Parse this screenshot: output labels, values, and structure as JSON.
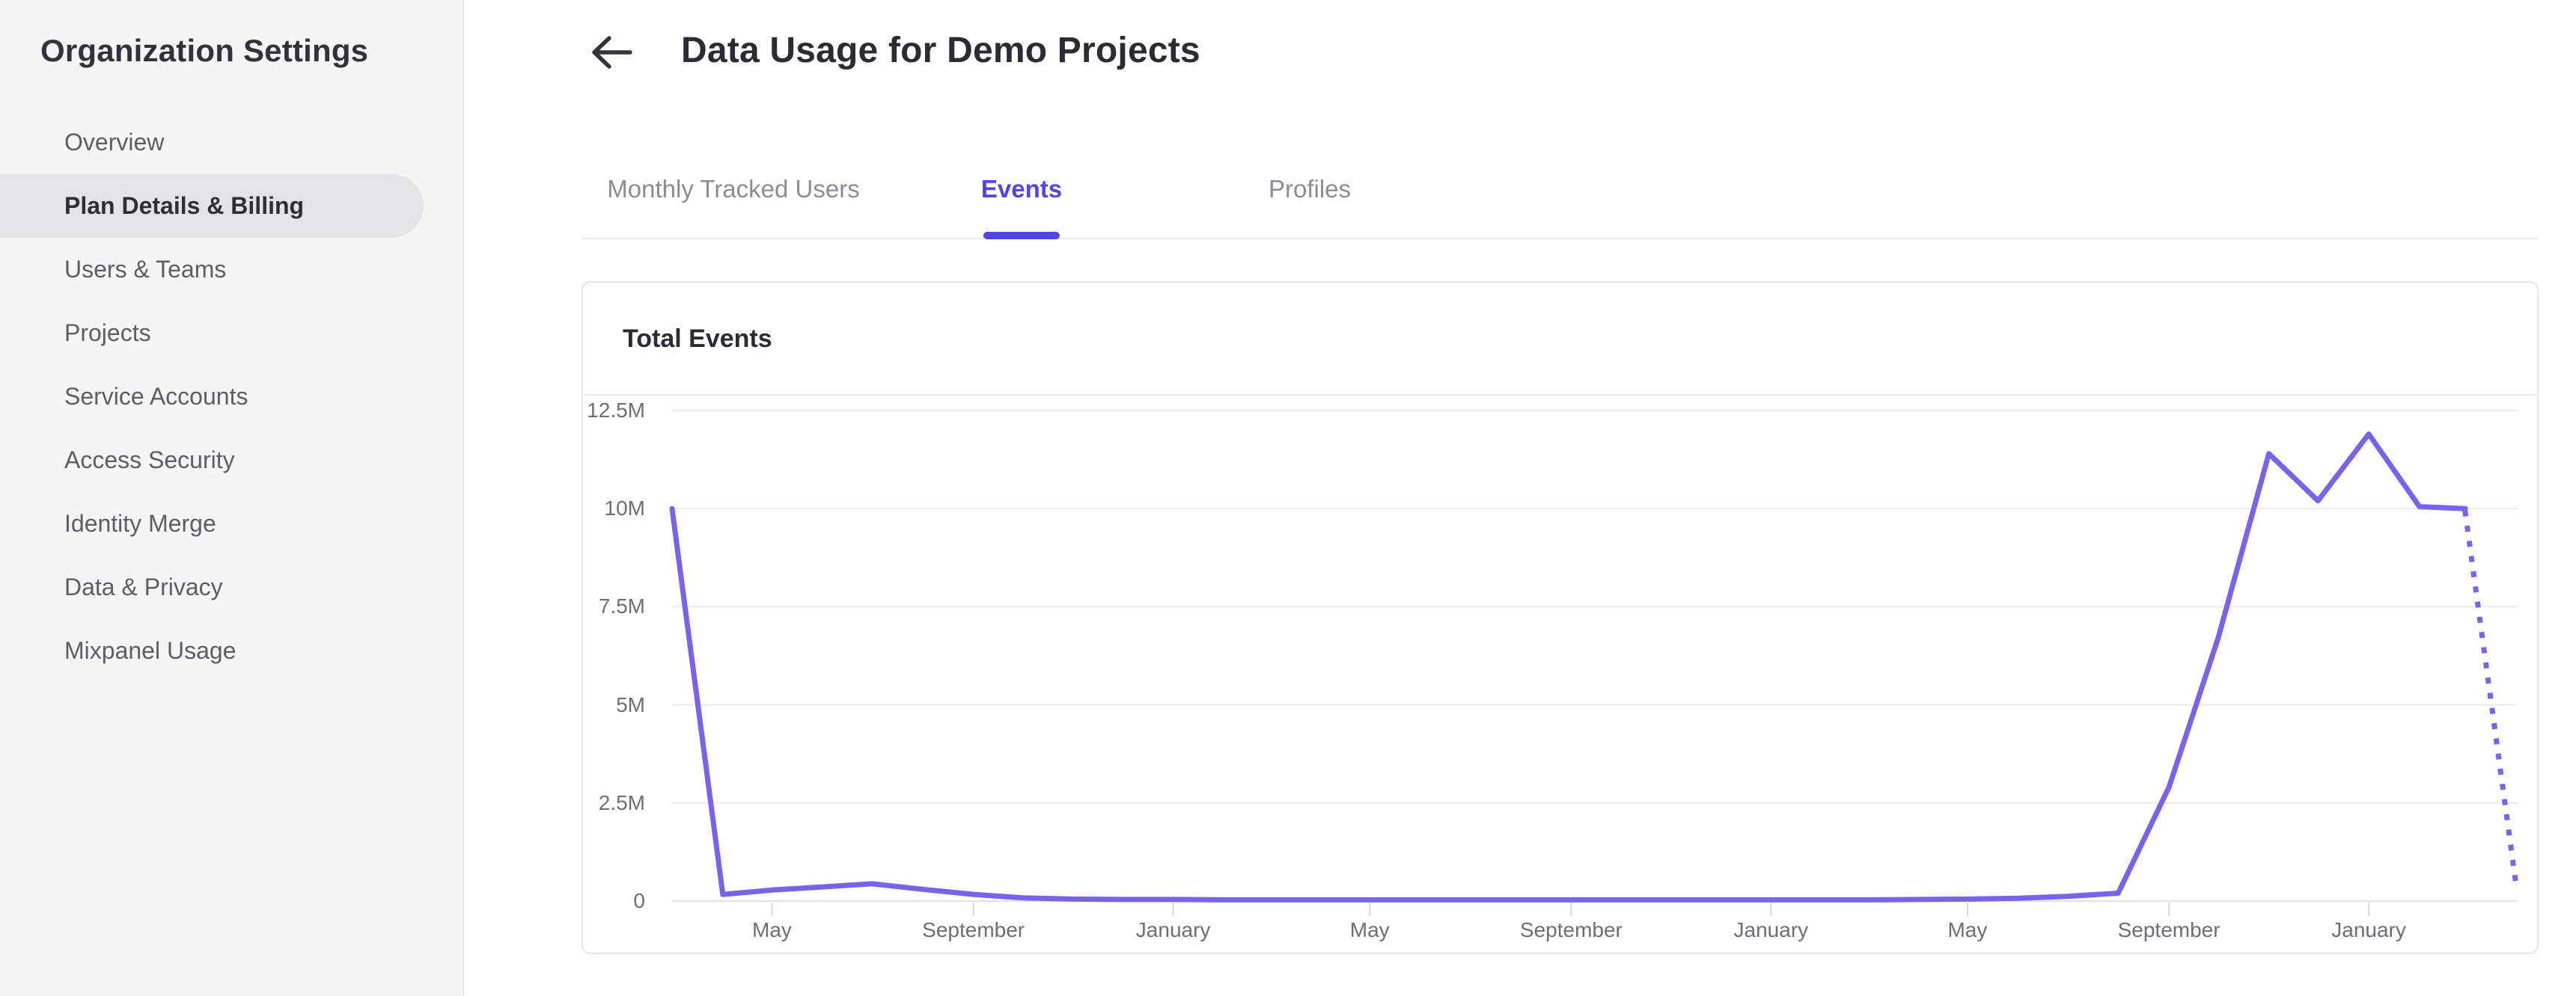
{
  "sidebar": {
    "title": "Organization Settings",
    "items": [
      {
        "label": "Overview",
        "selected": false
      },
      {
        "label": "Plan Details & Billing",
        "selected": true
      },
      {
        "label": "Users & Teams",
        "selected": false
      },
      {
        "label": "Projects",
        "selected": false
      },
      {
        "label": "Service Accounts",
        "selected": false
      },
      {
        "label": "Access Security",
        "selected": false
      },
      {
        "label": "Identity Merge",
        "selected": false
      },
      {
        "label": "Data & Privacy",
        "selected": false
      },
      {
        "label": "Mixpanel Usage",
        "selected": false
      }
    ]
  },
  "header": {
    "title": "Data Usage for Demo Projects",
    "back_icon": "arrow-left-icon"
  },
  "tabs": [
    {
      "label": "Monthly Tracked Users",
      "active": false
    },
    {
      "label": "Events",
      "active": true
    },
    {
      "label": "Profiles",
      "active": false
    }
  ],
  "card": {
    "title": "Total Events"
  },
  "colors": {
    "accent": "#5146e5",
    "line": "#7664ec",
    "gridline": "#ededf0",
    "axis_line": "#e2e2e6",
    "tick_mark": "#d9d9dd",
    "sidebar_bg": "#f5f5f6",
    "selected_pill": "#e4e4e6"
  },
  "chart_data": {
    "type": "line",
    "title": "Total Events",
    "xlabel": "",
    "ylabel": "",
    "grid": true,
    "legend": false,
    "ylim": [
      0,
      12500000
    ],
    "yticks": [
      {
        "value": 12500000,
        "label": "12.5M"
      },
      {
        "value": 10000000,
        "label": "10M"
      },
      {
        "value": 7500000,
        "label": "7.5M"
      },
      {
        "value": 5000000,
        "label": "5M"
      },
      {
        "value": 2500000,
        "label": "2.5M"
      },
      {
        "value": 0,
        "label": "0"
      }
    ],
    "xticks": [
      {
        "month_offset": 2,
        "label": "May"
      },
      {
        "month_offset": 6,
        "label": "September"
      },
      {
        "month_offset": 10,
        "label": "January"
      },
      {
        "month_offset": 14,
        "label": "May"
      },
      {
        "month_offset": 18,
        "label": "September"
      },
      {
        "month_offset": 22,
        "label": "January"
      },
      {
        "month_offset": 26,
        "label": "May"
      },
      {
        "month_offset": 30,
        "label": "September"
      },
      {
        "month_offset": 34,
        "label": "January"
      }
    ],
    "series": [
      {
        "name": "Total Events",
        "color": "#7664ec",
        "points": [
          {
            "month": "Mar",
            "value": 10000000
          },
          {
            "month": "Apr",
            "value": 170000
          },
          {
            "month": "May",
            "value": 280000
          },
          {
            "month": "Jun",
            "value": 360000
          },
          {
            "month": "Jul",
            "value": 440000
          },
          {
            "month": "Aug",
            "value": 300000
          },
          {
            "month": "Sep",
            "value": 170000
          },
          {
            "month": "Oct",
            "value": 80000
          },
          {
            "month": "Nov",
            "value": 50000
          },
          {
            "month": "Dec",
            "value": 40000
          },
          {
            "month": "Jan",
            "value": 40000
          },
          {
            "month": "Feb",
            "value": 30000
          },
          {
            "month": "Mar",
            "value": 30000
          },
          {
            "month": "Apr",
            "value": 30000
          },
          {
            "month": "May",
            "value": 30000
          },
          {
            "month": "Jun",
            "value": 30000
          },
          {
            "month": "Jul",
            "value": 30000
          },
          {
            "month": "Aug",
            "value": 30000
          },
          {
            "month": "Sep",
            "value": 30000
          },
          {
            "month": "Oct",
            "value": 30000
          },
          {
            "month": "Nov",
            "value": 30000
          },
          {
            "month": "Dec",
            "value": 30000
          },
          {
            "month": "Jan",
            "value": 30000
          },
          {
            "month": "Feb",
            "value": 30000
          },
          {
            "month": "Mar",
            "value": 30000
          },
          {
            "month": "Apr",
            "value": 40000
          },
          {
            "month": "May",
            "value": 50000
          },
          {
            "month": "Jun",
            "value": 70000
          },
          {
            "month": "Jul",
            "value": 120000
          },
          {
            "month": "Aug",
            "value": 200000
          },
          {
            "month": "Sep",
            "value": 2900000
          },
          {
            "month": "Oct",
            "value": 6700000
          },
          {
            "month": "Nov",
            "value": 11400000
          },
          {
            "month": "Dec",
            "value": 10200000
          },
          {
            "month": "Jan",
            "value": 11900000
          },
          {
            "month": "Feb",
            "value": 10050000
          },
          {
            "month": "Mar",
            "value": 10000000
          }
        ],
        "forecast_point": {
          "month": "Apr",
          "month_offset": 37,
          "value": 400000,
          "style": "dotted"
        }
      }
    ]
  }
}
